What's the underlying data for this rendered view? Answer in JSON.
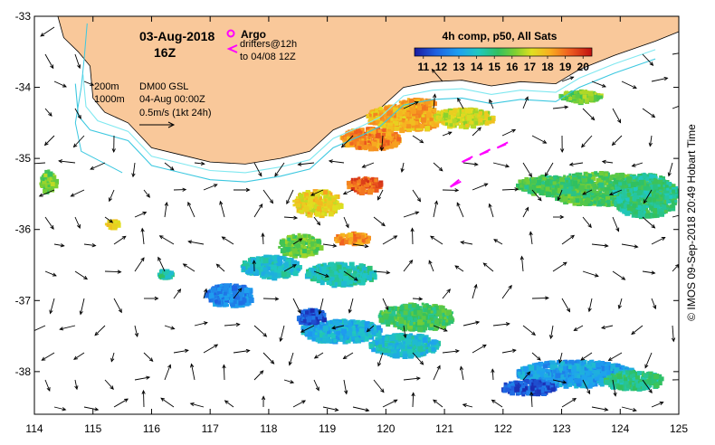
{
  "chart_data": {
    "type": "map",
    "header": {
      "date": "03-Aug-2018",
      "time": "16Z",
      "argo_label": "Argo",
      "drifters_label": "drifters@12h",
      "drifters_until": "to 04/08 12Z",
      "depth_200": "200m",
      "depth_1000": "1000m",
      "model_label": "DM00 GSL",
      "model_time": "04-Aug 00:00Z",
      "scale_label": "0.5m/s (1kt 24h)"
    },
    "colorbar": {
      "title": "4h comp, p50, All Sats",
      "ticks": [
        "11",
        "12",
        "13",
        "14",
        "15",
        "16",
        "17",
        "18",
        "19",
        "20"
      ],
      "range": [
        10.5,
        20.5
      ]
    },
    "x_ticks": [
      "114",
      "115",
      "116",
      "117",
      "118",
      "119",
      "120",
      "121",
      "122",
      "123",
      "124",
      "125"
    ],
    "y_ticks": [
      "-33",
      "-34",
      "-35",
      "-36",
      "-37",
      "-38"
    ],
    "xlim": [
      114,
      125
    ],
    "ylim": [
      -38.6,
      -33
    ],
    "colors": {
      "land": "#f9c89a",
      "contour_200": "#7fe8f0",
      "contour_1000": "#3cc8e0",
      "drifter": "#ff00ff",
      "arrow": "#000000"
    },
    "drifters": [
      [
        [
          121.1,
          -35.4
        ],
        [
          121.25,
          -35.3
        ]
      ],
      [
        [
          121.3,
          -35.05
        ],
        [
          121.45,
          -35.0
        ]
      ],
      [
        [
          121.6,
          -34.95
        ],
        [
          121.75,
          -34.9
        ]
      ],
      [
        [
          121.9,
          -34.85
        ],
        [
          122.05,
          -34.8
        ]
      ]
    ],
    "sst_patches": [
      {
        "lon": 120.3,
        "lat": -34.4,
        "w": 1.3,
        "h": 0.35,
        "temp": 18.0
      },
      {
        "lon": 121.3,
        "lat": -34.4,
        "w": 1.0,
        "h": 0.25,
        "temp": 17.0
      },
      {
        "lon": 119.7,
        "lat": -34.7,
        "w": 1.0,
        "h": 0.3,
        "temp": 18.6
      },
      {
        "lon": 123.3,
        "lat": -34.1,
        "w": 0.7,
        "h": 0.15,
        "temp": 16.0
      },
      {
        "lon": 123.6,
        "lat": -35.4,
        "w": 1.8,
        "h": 0.45,
        "temp": 15.5
      },
      {
        "lon": 124.4,
        "lat": -35.5,
        "w": 1.1,
        "h": 0.6,
        "temp": 14.8
      },
      {
        "lon": 122.7,
        "lat": -35.35,
        "w": 1.0,
        "h": 0.25,
        "temp": 15.3
      },
      {
        "lon": 119.6,
        "lat": -35.35,
        "w": 0.6,
        "h": 0.2,
        "temp": 19.2
      },
      {
        "lon": 118.8,
        "lat": -35.6,
        "w": 0.8,
        "h": 0.35,
        "temp": 17.5
      },
      {
        "lon": 118.5,
        "lat": -36.2,
        "w": 0.7,
        "h": 0.3,
        "temp": 15.8
      },
      {
        "lon": 119.4,
        "lat": -36.1,
        "w": 0.6,
        "h": 0.15,
        "temp": 18.5
      },
      {
        "lon": 118.0,
        "lat": -36.5,
        "w": 1.0,
        "h": 0.3,
        "temp": 14.0
      },
      {
        "lon": 117.3,
        "lat": -36.9,
        "w": 0.8,
        "h": 0.3,
        "temp": 12.5
      },
      {
        "lon": 119.2,
        "lat": -36.6,
        "w": 1.2,
        "h": 0.3,
        "temp": 14.3
      },
      {
        "lon": 120.5,
        "lat": -37.2,
        "w": 1.3,
        "h": 0.35,
        "temp": 15.3
      },
      {
        "lon": 119.2,
        "lat": -37.4,
        "w": 1.4,
        "h": 0.3,
        "temp": 13.5
      },
      {
        "lon": 120.3,
        "lat": -37.6,
        "w": 1.2,
        "h": 0.3,
        "temp": 13.8
      },
      {
        "lon": 118.7,
        "lat": -37.2,
        "w": 0.5,
        "h": 0.2,
        "temp": 11.5
      },
      {
        "lon": 123.2,
        "lat": -38.0,
        "w": 2.0,
        "h": 0.35,
        "temp": 13.0
      },
      {
        "lon": 122.4,
        "lat": -38.2,
        "w": 0.9,
        "h": 0.2,
        "temp": 11.6
      },
      {
        "lon": 124.2,
        "lat": -38.1,
        "w": 1.0,
        "h": 0.25,
        "temp": 14.8
      },
      {
        "lon": 114.2,
        "lat": -35.3,
        "w": 0.25,
        "h": 0.3,
        "temp": 16.0
      },
      {
        "lon": 115.3,
        "lat": -35.9,
        "w": 0.2,
        "h": 0.1,
        "temp": 17.2
      },
      {
        "lon": 116.2,
        "lat": -36.6,
        "w": 0.25,
        "h": 0.1,
        "temp": 14.5
      },
      {
        "lon": 120.5,
        "lat": -34.2,
        "w": 0.6,
        "h": 0.12,
        "temp": 18.3
      }
    ],
    "credit": "© IMOS 09-Sep-2018 20:49 Hobart Time"
  }
}
